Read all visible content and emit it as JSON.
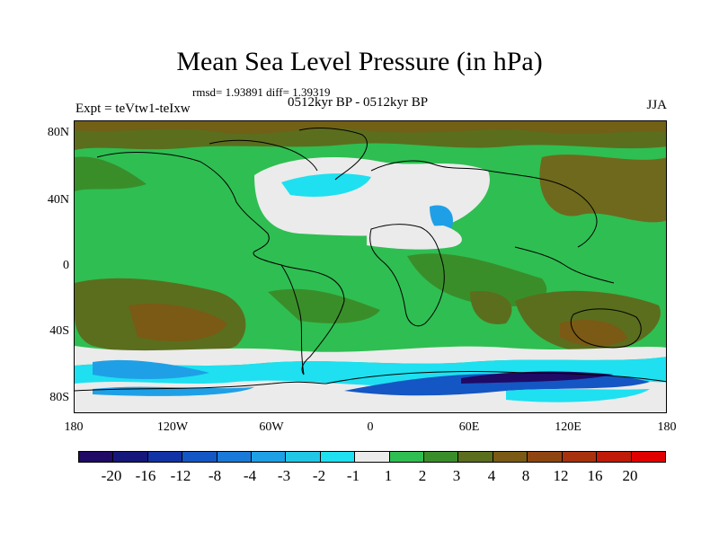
{
  "title": "Mean Sea Level Pressure (in hPa)",
  "stats": "rmsd= 1.93891 diff= 1.39319",
  "period": "0512kyr BP - 0512kyr BP",
  "experiment": "Expt = teVtw1-teIxw",
  "season": "JJA",
  "lat_labels": [
    "80N",
    "40N",
    "0",
    "40S",
    "80S"
  ],
  "lon_labels": [
    "180",
    "120W",
    "60W",
    "0",
    "60E",
    "120E",
    "180"
  ],
  "colorbar": {
    "colors": [
      "#1f0a66",
      "#16177a",
      "#1233a6",
      "#1456c4",
      "#1a7ad9",
      "#1fa0e6",
      "#22c7e6",
      "#1ee0f0",
      "#ebebeb",
      "#2fbe52",
      "#3a8e2a",
      "#5b6e1d",
      "#7a5a14",
      "#8f4512",
      "#a8320e",
      "#c01a08",
      "#e00000"
    ],
    "labels": [
      "-20",
      "-16",
      "-12",
      "-8",
      "-4",
      "-3",
      "-2",
      "-1",
      "1",
      "2",
      "3",
      "4",
      "8",
      "12",
      "16",
      "20"
    ]
  }
}
